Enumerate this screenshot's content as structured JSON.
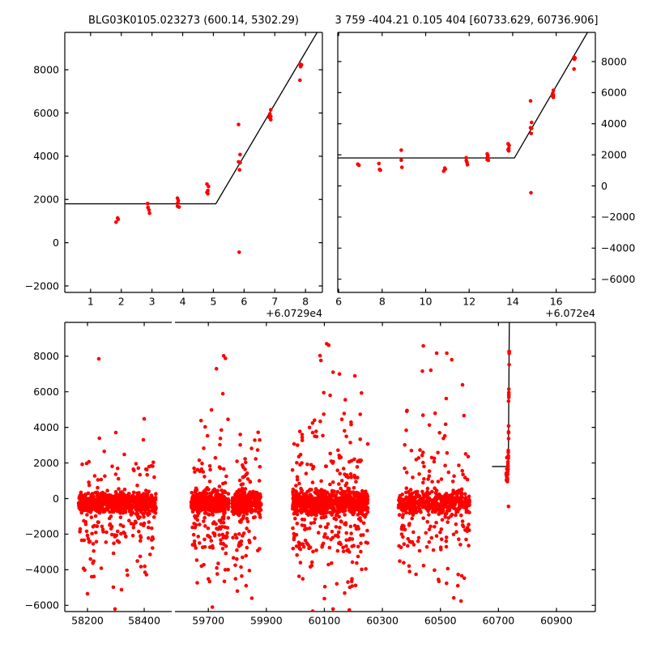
{
  "figure": {
    "background": "#ffffff",
    "marker_color": "#ff0000",
    "line_color": "#000000",
    "axis_color": "#000000"
  },
  "chart_data": [
    {
      "id": "top-left",
      "type": "scatter",
      "title": "BLG03K0105.023273 (600.14, 5302.29)",
      "xlim": [
        60729.16,
        60737.55
      ],
      "ylim": [
        -2300,
        9730
      ],
      "x_offset_label": "+6.0729e4",
      "x_ticks": [
        60730,
        60731,
        60732,
        60733,
        60734,
        60735,
        60736,
        60737
      ],
      "x_tick_labels": [
        "1",
        "2",
        "3",
        "4",
        "5",
        "6",
        "7",
        "8"
      ],
      "y_ticks": [
        -2000,
        0,
        2000,
        4000,
        6000,
        8000
      ],
      "y_tick_labels": [
        "−2000",
        "0",
        "2000",
        "4000",
        "6000",
        "8000"
      ],
      "y_label_side": "left",
      "grid": false,
      "legend": null,
      "model": {
        "flat_y": 1800,
        "flat_x_start": null,
        "break_x": 60734.08,
        "slope": 2403
      },
      "points_ref": "event_points"
    },
    {
      "id": "top-right",
      "type": "scatter",
      "title": "3 759 -404.21 0.105 404 [60733.629, 60736.906]",
      "xlim": [
        60725.96,
        60737.8
      ],
      "ylim": [
        -6850,
        9875
      ],
      "x_offset_label": "+6.072e4",
      "x_ticks": [
        60726,
        60728,
        60730,
        60732,
        60734,
        60736
      ],
      "x_tick_labels": [
        "6",
        "8",
        "10",
        "12",
        "14",
        "16"
      ],
      "y_ticks": [
        -6000,
        -4000,
        -2000,
        0,
        2000,
        4000,
        6000,
        8000
      ],
      "y_tick_labels": [
        "−6000",
        "−4000",
        "−2000",
        "0",
        "2000",
        "4000",
        "6000",
        "8000"
      ],
      "y_label_side": "right",
      "grid": false,
      "legend": null,
      "model": {
        "flat_y": 1800,
        "flat_x_start": null,
        "break_x": 60734.08,
        "slope": 2403
      },
      "points_ref": "event_points"
    },
    {
      "id": "bottom",
      "type": "scatter_broken_x",
      "ylim": [
        -6350,
        9900
      ],
      "y_ticks": [
        -6000,
        -4000,
        -2000,
        0,
        2000,
        4000,
        6000,
        8000
      ],
      "y_tick_labels": [
        "−6000",
        "−4000",
        "−2000",
        "0",
        "2000",
        "4000",
        "6000",
        "8000"
      ],
      "y_label_side": "left",
      "grid": false,
      "legend": null,
      "panels": [
        {
          "xlim": [
            58120,
            58497
          ],
          "x_ticks": [
            58200,
            58400
          ],
          "x_tick_labels": [
            "58200",
            "58400"
          ]
        },
        {
          "xlim": [
            59585,
            61034
          ],
          "x_ticks": [
            59700,
            59900,
            60100,
            60300,
            60500,
            60700,
            60900
          ],
          "x_tick_labels": [
            "59700",
            "59900",
            "60100",
            "60300",
            "60500",
            "60700",
            "60900"
          ]
        }
      ],
      "model": {
        "flat_y": 1800,
        "flat_x_start": 60678,
        "break_x": 60734.08,
        "slope": 2403
      },
      "points_ref": "event_points",
      "clusters": [
        {
          "id": "season-1",
          "panel": 0,
          "seed": 101,
          "x_segments": [
            [
              58168,
              58442
            ]
          ],
          "bands": [
            {
              "n": 620,
              "dist": "gauss",
              "mu": -230,
              "sigma": 330,
              "clip": [
                -950,
                700
              ]
            },
            {
              "n": 78,
              "dist": "uniform",
              "range": [
                -2600,
                -950
              ]
            },
            {
              "n": 17,
              "dist": "uniform",
              "range": [
                -4400,
                -2600
              ]
            },
            {
              "n": 27,
              "dist": "uniform",
              "range": [
                700,
                2100
              ]
            }
          ],
          "extras": [
            [
              58240,
              7850
            ],
            [
              58400,
              4480
            ],
            [
              58397,
              3300
            ],
            [
              58300,
              3710
            ],
            [
              58242,
              3390
            ],
            [
              58330,
              2480
            ],
            [
              58259,
              2650
            ],
            [
              58200,
              -5350
            ],
            [
              58291,
              -4980
            ],
            [
              58320,
              -5120
            ],
            [
              58272,
              -6440
            ],
            [
              58297,
              -6210
            ],
            [
              58341,
              -4300
            ],
            [
              58386,
              -3250
            ],
            [
              58222,
              -2950
            ]
          ]
        },
        {
          "id": "season-2",
          "panel": 1,
          "seed": 202,
          "x_segments": [
            [
              59640,
              59770
            ],
            [
              59782,
              59882
            ]
          ],
          "bands": [
            {
              "n": 700,
              "dist": "gauss",
              "mu": -230,
              "sigma": 330,
              "clip": [
                -1000,
                700
              ]
            },
            {
              "n": 92,
              "dist": "uniform",
              "range": [
                -2800,
                -1000
              ]
            },
            {
              "n": 26,
              "dist": "uniform",
              "range": [
                -4800,
                -2800
              ]
            },
            {
              "n": 38,
              "dist": "uniform",
              "range": [
                700,
                2300
              ]
            },
            {
              "n": 9,
              "dist": "uniform",
              "range": [
                2300,
                3900
              ]
            }
          ],
          "extras": [
            [
              59753,
              8020
            ],
            [
              59759,
              7880
            ],
            [
              59728,
              7290
            ],
            [
              59750,
              5890
            ],
            [
              59711,
              4980
            ],
            [
              59768,
              4450
            ],
            [
              59675,
              4380
            ],
            [
              59689,
              4030
            ],
            [
              59745,
              3850
            ],
            [
              59810,
              3600
            ],
            [
              59860,
              3280
            ],
            [
              59850,
              -5600
            ],
            [
              59800,
              -5200
            ],
            [
              59830,
              -4900
            ],
            [
              59714,
              -6100
            ]
          ]
        },
        {
          "id": "season-3",
          "panel": 1,
          "seed": 303,
          "x_segments": [
            [
              59990,
              60250
            ]
          ],
          "bands": [
            {
              "n": 720,
              "dist": "gauss",
              "mu": -230,
              "sigma": 350,
              "clip": [
                -1050,
                760
              ]
            },
            {
              "n": 100,
              "dist": "uniform",
              "range": [
                -3000,
                -1050
              ]
            },
            {
              "n": 22,
              "dist": "uniform",
              "range": [
                -5000,
                -3000
              ]
            },
            {
              "n": 52,
              "dist": "uniform",
              "range": [
                760,
                2600
              ]
            },
            {
              "n": 25,
              "dist": "uniform",
              "range": [
                2600,
                4800
              ]
            }
          ],
          "extras": [
            [
              60108,
              8700
            ],
            [
              60115,
              8620
            ],
            [
              60085,
              8030
            ],
            [
              60088,
              7760
            ],
            [
              60130,
              7100
            ],
            [
              60152,
              7000
            ],
            [
              60205,
              6890
            ],
            [
              60098,
              5950
            ],
            [
              60120,
              5800
            ],
            [
              60172,
              5550
            ],
            [
              60228,
              5930
            ],
            [
              60066,
              4400
            ],
            [
              60160,
              4450
            ],
            [
              60060,
              -6330
            ],
            [
              60130,
              -6210
            ],
            [
              60186,
              -6260
            ],
            [
              60100,
              -5620
            ],
            [
              60170,
              -5310
            ]
          ]
        },
        {
          "id": "season-4",
          "panel": 1,
          "seed": 404,
          "x_segments": [
            [
              60355,
              60600
            ]
          ],
          "bands": [
            {
              "n": 450,
              "dist": "gauss",
              "mu": -230,
              "sigma": 350,
              "clip": [
                -1050,
                760
              ]
            },
            {
              "n": 62,
              "dist": "uniform",
              "range": [
                -2800,
                -1050
              ]
            },
            {
              "n": 15,
              "dist": "uniform",
              "range": [
                -4600,
                -2800
              ]
            },
            {
              "n": 34,
              "dist": "uniform",
              "range": [
                760,
                2600
              ]
            },
            {
              "n": 13,
              "dist": "uniform",
              "range": [
                2600,
                5000
              ]
            }
          ],
          "extras": [
            [
              60441,
              8580
            ],
            [
              60487,
              8170
            ],
            [
              60522,
              8170
            ],
            [
              60539,
              7800
            ],
            [
              60467,
              7210
            ],
            [
              60438,
              7160
            ],
            [
              60576,
              6390
            ],
            [
              60520,
              5620
            ],
            [
              60384,
              4900
            ],
            [
              60495,
              -4650
            ],
            [
              60521,
              -4760
            ],
            [
              60546,
              -5580
            ],
            [
              60571,
              -5760
            ],
            [
              60560,
              -4900
            ]
          ]
        }
      ]
    }
  ],
  "event_points": [
    [
      60726.88,
      1400
    ],
    [
      60726.93,
      1330
    ],
    [
      60727.85,
      1440
    ],
    [
      60727.88,
      1060
    ],
    [
      60727.92,
      1010
    ],
    [
      60728.88,
      2300
    ],
    [
      60728.88,
      1660
    ],
    [
      60728.91,
      1200
    ],
    [
      60730.83,
      950
    ],
    [
      60730.88,
      1140
    ],
    [
      60730.9,
      1080
    ],
    [
      60731.86,
      1810
    ],
    [
      60731.87,
      1630
    ],
    [
      60731.9,
      1510
    ],
    [
      60731.92,
      1360
    ],
    [
      60732.83,
      2060
    ],
    [
      60732.86,
      1950
    ],
    [
      60732.84,
      1840
    ],
    [
      60732.83,
      1690
    ],
    [
      60732.88,
      1650
    ],
    [
      60733.79,
      2710
    ],
    [
      60733.84,
      2600
    ],
    [
      60733.82,
      2410
    ],
    [
      60733.79,
      2330
    ],
    [
      60733.82,
      2260
    ],
    [
      60734.82,
      5470
    ],
    [
      60734.87,
      4080
    ],
    [
      60734.82,
      3740
    ],
    [
      60734.87,
      3700
    ],
    [
      60734.85,
      3370
    ],
    [
      60734.84,
      -440
    ],
    [
      60735.87,
      6150
    ],
    [
      60735.84,
      5960
    ],
    [
      60735.87,
      5840
    ],
    [
      60735.82,
      5800
    ],
    [
      60735.87,
      5690
    ],
    [
      60736.82,
      8270
    ],
    [
      60736.87,
      8230
    ],
    [
      60736.84,
      8150
    ],
    [
      60736.82,
      7520
    ]
  ]
}
